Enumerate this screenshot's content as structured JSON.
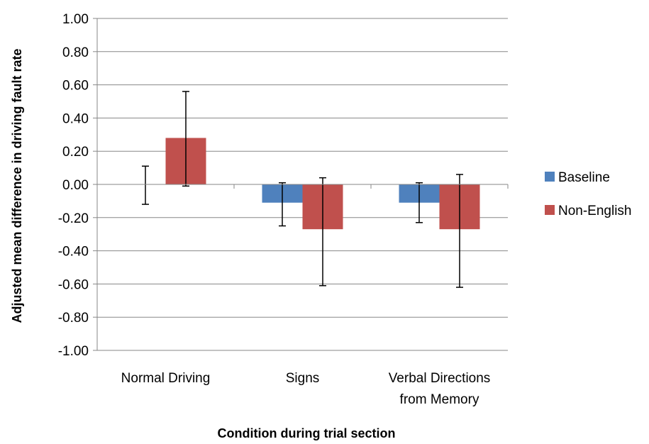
{
  "chart_data": {
    "type": "bar",
    "title": "",
    "xlabel": "Condition during trial section",
    "ylabel": "Adjusted mean difference in driving fault rate",
    "ylim": [
      -1.0,
      1.0
    ],
    "ytick_step": 0.2,
    "yticks": [
      "1.00",
      "0.80",
      "0.60",
      "0.40",
      "0.20",
      "0.00",
      "-0.20",
      "-0.40",
      "-0.60",
      "-0.80",
      "-1.00"
    ],
    "categories": [
      [
        "Normal Driving"
      ],
      [
        "Signs"
      ],
      [
        "Verbal Directions",
        "from Memory"
      ]
    ],
    "series": [
      {
        "name": "Baseline",
        "color": "#4F81BD",
        "values": [
          0.0,
          -0.11,
          -0.11
        ],
        "err_low": [
          -0.12,
          -0.25,
          -0.23
        ],
        "err_high": [
          0.11,
          0.01,
          0.01
        ]
      },
      {
        "name": "Non-English",
        "color": "#C0504D",
        "values": [
          0.28,
          -0.27,
          -0.27
        ],
        "err_low": [
          -0.01,
          -0.61,
          -0.62
        ],
        "err_high": [
          0.56,
          0.04,
          0.06
        ]
      }
    ],
    "legend_position": "right",
    "grid": true
  }
}
